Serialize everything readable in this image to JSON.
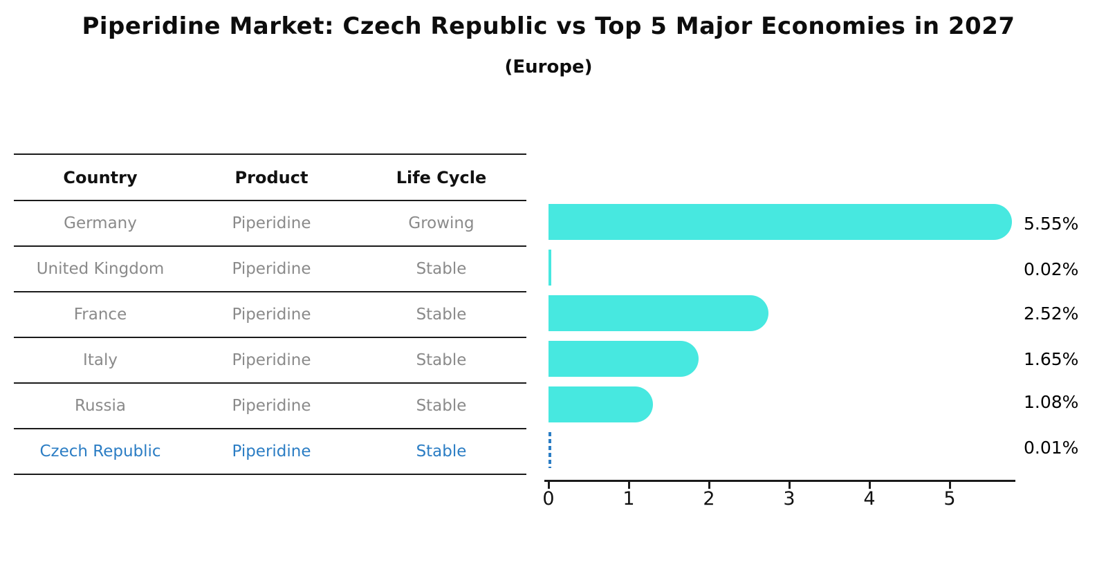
{
  "title": "Piperidine Market: Czech Republic vs Top 5 Major Economies in 2027",
  "subtitle": "(Europe)",
  "table": {
    "headers": [
      "Country",
      "Product",
      "Life Cycle"
    ],
    "rows": [
      {
        "country": "Germany",
        "product": "Piperidine",
        "life_cycle": "Growing"
      },
      {
        "country": "United Kingdom",
        "product": "Piperidine",
        "life_cycle": "Stable"
      },
      {
        "country": "France",
        "product": "Piperidine",
        "life_cycle": "Stable"
      },
      {
        "country": "Italy",
        "product": "Piperidine",
        "life_cycle": "Stable"
      },
      {
        "country": "Russia",
        "product": "Piperidine",
        "life_cycle": "Stable"
      },
      {
        "country": "Czech Republic",
        "product": "Piperidine",
        "life_cycle": "Stable"
      }
    ],
    "highlight_row_index": 5
  },
  "chart_data": {
    "type": "bar",
    "orientation": "horizontal",
    "title": "Piperidine Market: Czech Republic vs Top 5 Major Economies in 2027 (Europe)",
    "categories": [
      "Germany",
      "United Kingdom",
      "France",
      "Italy",
      "Russia",
      "Czech Republic"
    ],
    "values": [
      5.55,
      0.02,
      2.52,
      1.65,
      1.08,
      0.01
    ],
    "value_labels": [
      "5.55%",
      "0.02%",
      "2.52%",
      "1.65%",
      "1.08%",
      "0.01%"
    ],
    "x_ticks": [
      "0",
      "1",
      "2",
      "3",
      "4",
      "5"
    ],
    "xlim": [
      0,
      5.8
    ],
    "xlabel": "",
    "ylabel": "",
    "grid": false,
    "legend": "none",
    "bar_color": "#47e8e0",
    "highlight_color": "#2b7dc4",
    "highlight_index": 5,
    "highlight_style": "dashed-outline"
  },
  "colors": {
    "background": "#ffffff",
    "title_text": "#0d0d0d",
    "header_text": "#111111",
    "row_text": "#8a8a8a",
    "line": "#1a1a1a",
    "bar": "#47e8e0",
    "accent_blue": "#2b7dc4"
  }
}
